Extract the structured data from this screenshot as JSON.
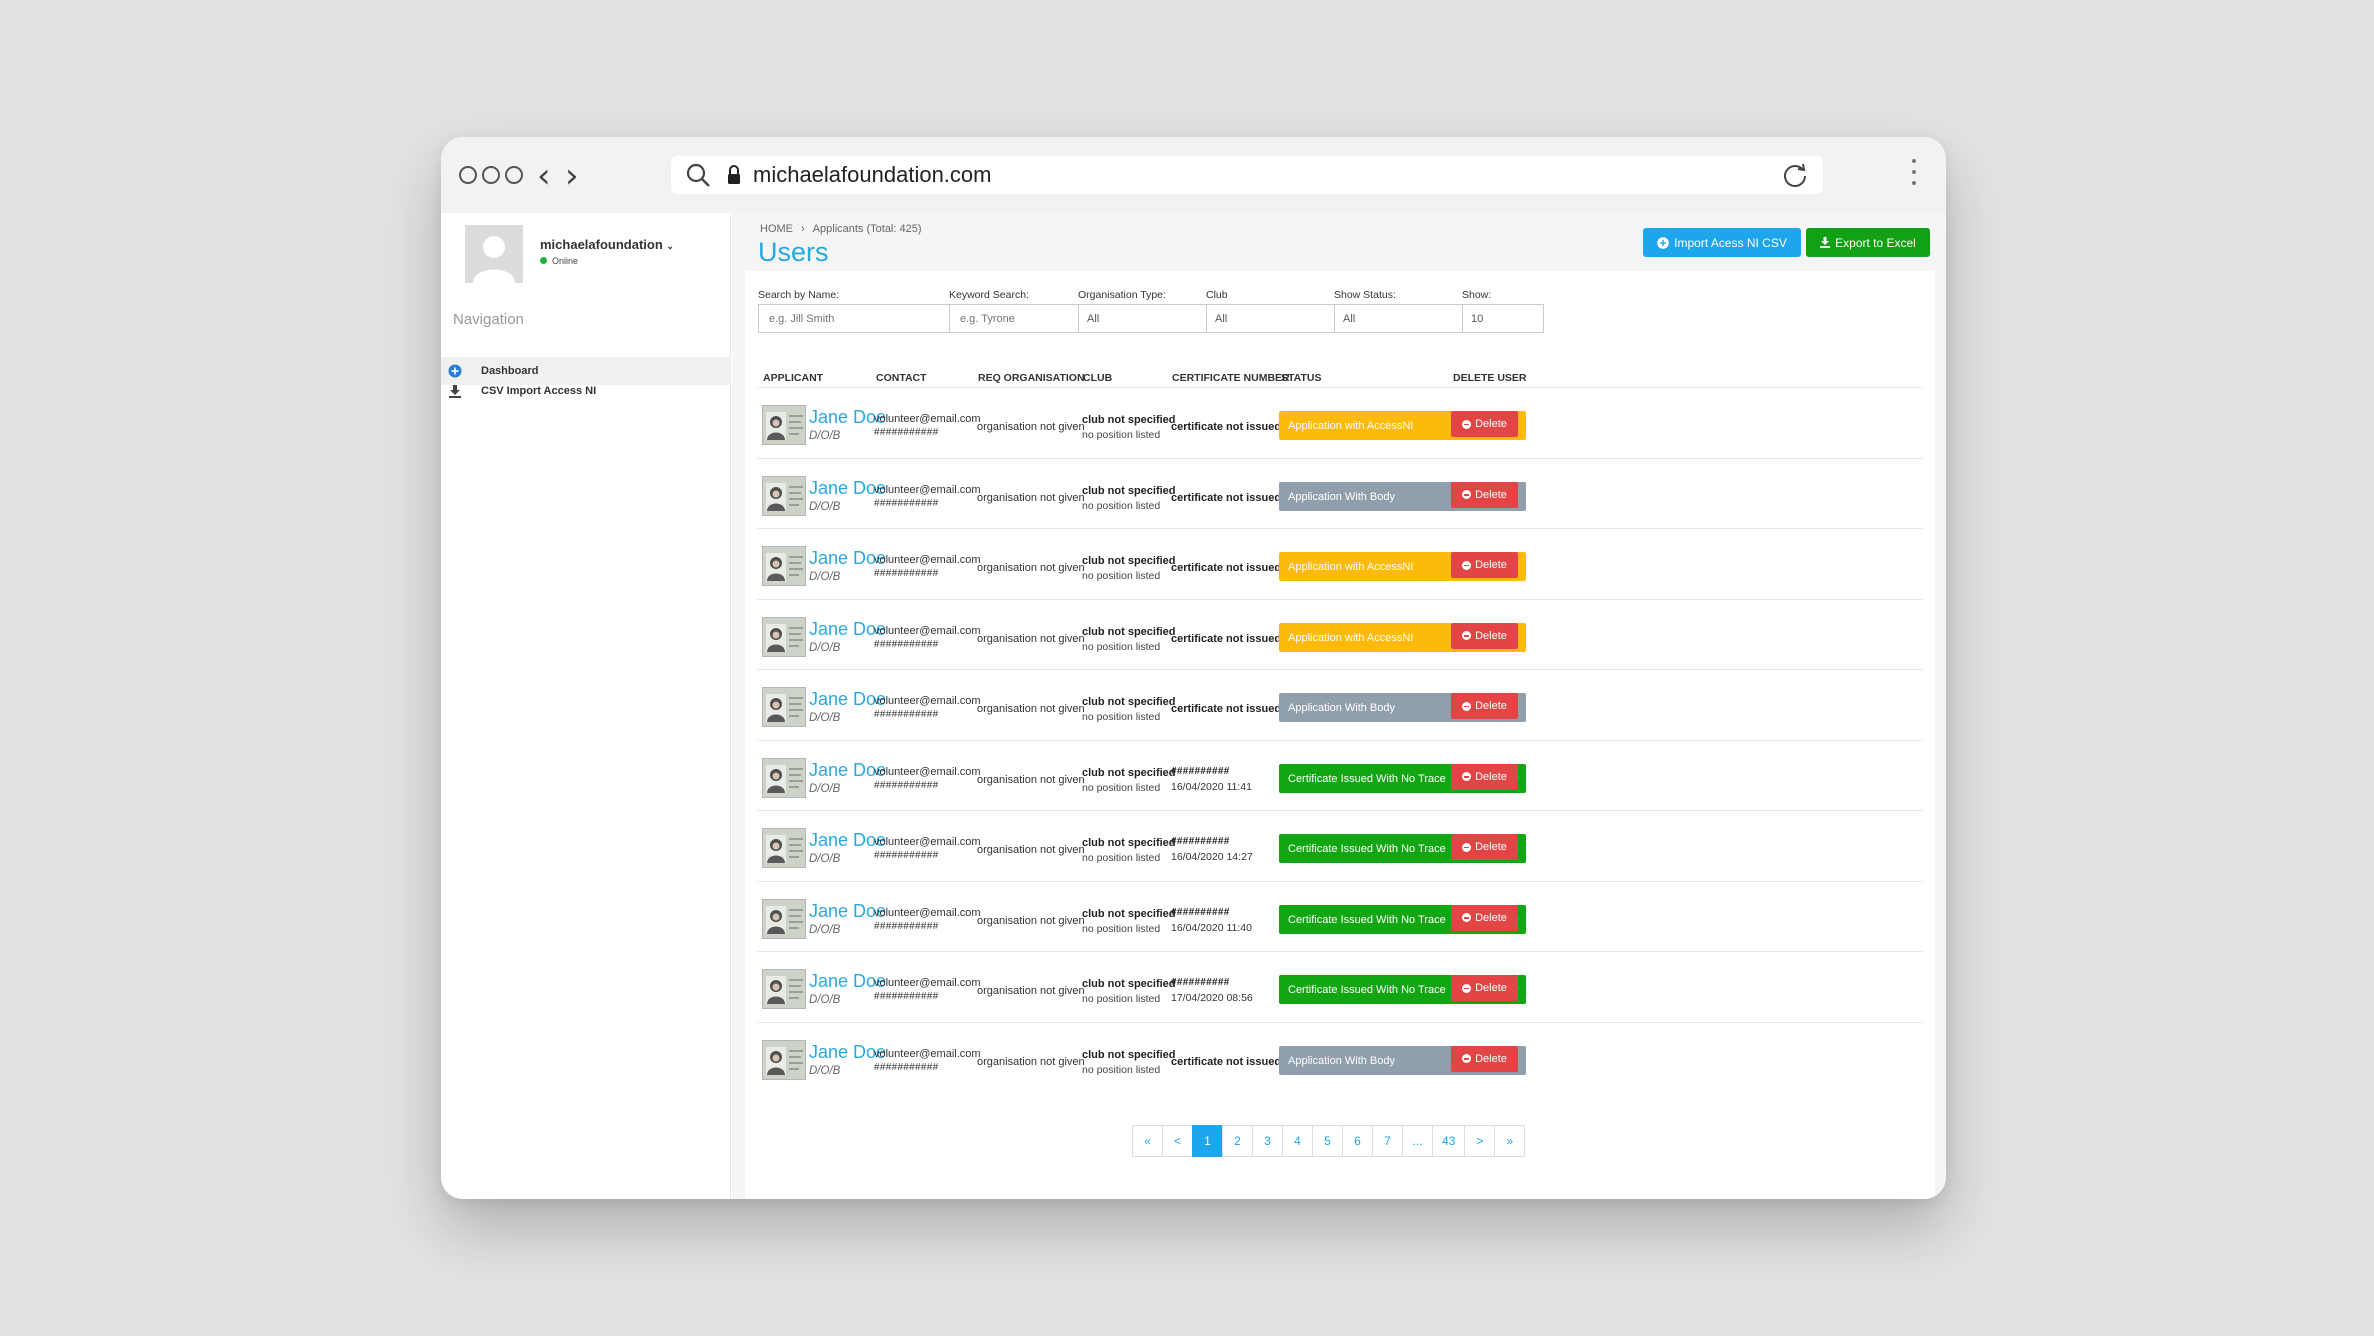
{
  "browser": {
    "url": "michaelafoundation.com"
  },
  "sidebar": {
    "user_name": "michaelafoundation",
    "user_status": "Online",
    "nav_heading": "Navigation",
    "items": [
      {
        "label": "Dashboard",
        "icon": "plus-circle-icon"
      },
      {
        "label": "CSV Import Access NI",
        "icon": "download-icon"
      }
    ]
  },
  "header": {
    "breadcrumb_home": "HOME",
    "breadcrumb_current": "Applicants (Total: 425)",
    "title": "Users",
    "import_label": "Import Acess NI CSV",
    "export_label": "Export to Excel"
  },
  "filters": {
    "search_name_label": "Search by Name:",
    "search_name_placeholder": "e.g. Jill Smith",
    "keyword_label": "Keyword Search:",
    "keyword_placeholder": "e.g. Tyrone",
    "org_type_label": "Organisation Type:",
    "org_type_value": "All",
    "club_label": "Club",
    "club_value": "All",
    "status_label": "Show Status:",
    "status_value": "All",
    "show_label": "Show:",
    "show_value": "10"
  },
  "table": {
    "headers": [
      "APPLICANT",
      "CONTACT",
      "REQ ORGANISATION",
      "CLUB",
      "CERTIFICATE NUMBER",
      "STATUS",
      "DELETE USER"
    ],
    "delete_label": "Delete",
    "rows": [
      {
        "name": "Jane Doe",
        "dob": "D/O/B",
        "email": "volunteer@email.com",
        "phone": "###########",
        "org": "organisation not given",
        "club": "club not specified",
        "position": "no position listed",
        "cert": "certificate not issued",
        "cert_date": "",
        "status": "Application with AccessNI",
        "status_color": "#fdba0b"
      },
      {
        "name": "Jane Doe",
        "dob": "D/O/B",
        "email": "volunteer@email.com",
        "phone": "###########",
        "org": "organisation not given",
        "club": "club not specified",
        "position": "no position listed",
        "cert": "certificate not issued",
        "cert_date": "",
        "status": "Application With Body",
        "status_color": "#919fad"
      },
      {
        "name": "Jane Doe",
        "dob": "D/O/B",
        "email": "volunteer@email.com",
        "phone": "###########",
        "org": "organisation not given",
        "club": "club not specified",
        "position": "no position listed",
        "cert": "certificate not issued",
        "cert_date": "",
        "status": "Application with AccessNI",
        "status_color": "#fdba0b"
      },
      {
        "name": "Jane Doe",
        "dob": "D/O/B",
        "email": "volunteer@email.com",
        "phone": "###########",
        "org": "organisation not given",
        "club": "club not specified",
        "position": "no position listed",
        "cert": "certificate not issued",
        "cert_date": "",
        "status": "Application with AccessNI",
        "status_color": "#fdba0b"
      },
      {
        "name": "Jane Doe",
        "dob": "D/O/B",
        "email": "volunteer@email.com",
        "phone": "###########",
        "org": "organisation not given",
        "club": "club not specified",
        "position": "no position listed",
        "cert": "certificate not issued",
        "cert_date": "",
        "status": "Application With Body",
        "status_color": "#919fad"
      },
      {
        "name": "Jane Doe",
        "dob": "D/O/B",
        "email": "volunteer@email.com",
        "phone": "###########",
        "org": "organisation not given",
        "club": "club not specified",
        "position": "no position listed",
        "cert": "##########",
        "cert_date": "16/04/2020 11:41",
        "status": "Certificate Issued With No Trace",
        "status_color": "#13a613"
      },
      {
        "name": "Jane Doe",
        "dob": "D/O/B",
        "email": "volunteer@email.com",
        "phone": "###########",
        "org": "organisation not given",
        "club": "club not specified",
        "position": "no position listed",
        "cert": "##########",
        "cert_date": "16/04/2020 14:27",
        "status": "Certificate Issued With No Trace",
        "status_color": "#13a613"
      },
      {
        "name": "Jane Doe",
        "dob": "D/O/B",
        "email": "volunteer@email.com",
        "phone": "###########",
        "org": "organisation not given",
        "club": "club not specified",
        "position": "no position listed",
        "cert": "##########",
        "cert_date": "16/04/2020 11:40",
        "status": "Certificate Issued With No Trace",
        "status_color": "#13a613"
      },
      {
        "name": "Jane Doe",
        "dob": "D/O/B",
        "email": "volunteer@email.com",
        "phone": "###########",
        "org": "organisation not given",
        "club": "club not specified",
        "position": "no position listed",
        "cert": "##########",
        "cert_date": "17/04/2020 08:56",
        "status": "Certificate Issued With No Trace",
        "status_color": "#13a613"
      },
      {
        "name": "Jane Doe",
        "dob": "D/O/B",
        "email": "volunteer@email.com",
        "phone": "###########",
        "org": "organisation not given",
        "club": "club not specified",
        "position": "no position listed",
        "cert": "certificate not issued",
        "cert_date": "",
        "status": "Application With Body",
        "status_color": "#919fad"
      }
    ]
  },
  "pagination": {
    "pages": [
      "«",
      "<",
      "1",
      "2",
      "3",
      "4",
      "5",
      "6",
      "7",
      "...",
      "43",
      ">",
      "»"
    ],
    "current": "1"
  },
  "colors": {
    "accent": "#29a8e0",
    "import_button": "#1ea6ec",
    "export_button": "#12a115",
    "delete_button": "#e34446"
  }
}
